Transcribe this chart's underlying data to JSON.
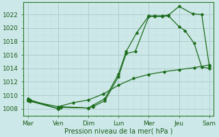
{
  "title": "",
  "xlabel": "Pression niveau de la mer( hPa )",
  "bg_color": "#cde8e8",
  "grid_major_color": "#b0cccc",
  "grid_minor_color": "#c8dede",
  "line_color": "#1a6b1a",
  "tick_labels": [
    "Mar",
    "Ven",
    "Dim",
    "Lun",
    "Mer",
    "Jeu",
    "Sam"
  ],
  "tick_positions": [
    0,
    1,
    2,
    3,
    4,
    5,
    6
  ],
  "ylim": [
    1007.0,
    1023.8
  ],
  "yticks": [
    1008,
    1010,
    1012,
    1014,
    1016,
    1018,
    1020,
    1022
  ],
  "line1_x": [
    0,
    0.08,
    1.0,
    1.1,
    2.0,
    2.15,
    2.55,
    3.0,
    3.25,
    3.6,
    4.0,
    4.2,
    4.45,
    4.65,
    5.0,
    5.45,
    5.75,
    6.0
  ],
  "line1_y": [
    1009.5,
    1009.3,
    1008.0,
    1008.3,
    1008.1,
    1008.5,
    1009.5,
    1013.2,
    1016.5,
    1019.3,
    1021.8,
    1021.8,
    1021.8,
    1021.9,
    1023.2,
    1022.1,
    1022.0,
    1014.3
  ],
  "line2_x": [
    0,
    0.08,
    1.0,
    1.1,
    2.0,
    2.15,
    2.55,
    3.0,
    3.25,
    3.55,
    4.0,
    4.2,
    4.45,
    4.65,
    5.0,
    5.2,
    5.5,
    5.75,
    6.0
  ],
  "line2_y": [
    1009.3,
    1009.1,
    1008.0,
    1008.2,
    1008.1,
    1008.3,
    1009.2,
    1012.8,
    1016.2,
    1016.5,
    1021.7,
    1021.7,
    1021.7,
    1021.8,
    1020.2,
    1019.6,
    1017.7,
    1014.2,
    1014.0
  ],
  "line3_x": [
    0,
    1.0,
    1.5,
    2.0,
    2.5,
    3.0,
    3.5,
    4.0,
    4.5,
    5.0,
    5.5,
    6.0
  ],
  "line3_y": [
    1009.2,
    1008.3,
    1008.9,
    1009.3,
    1010.2,
    1011.5,
    1012.5,
    1013.1,
    1013.5,
    1013.8,
    1014.1,
    1014.5
  ],
  "marker_size": 2.5,
  "linewidth": 0.9,
  "xlabel_fontsize": 7.0,
  "tick_fontsize": 6.5
}
